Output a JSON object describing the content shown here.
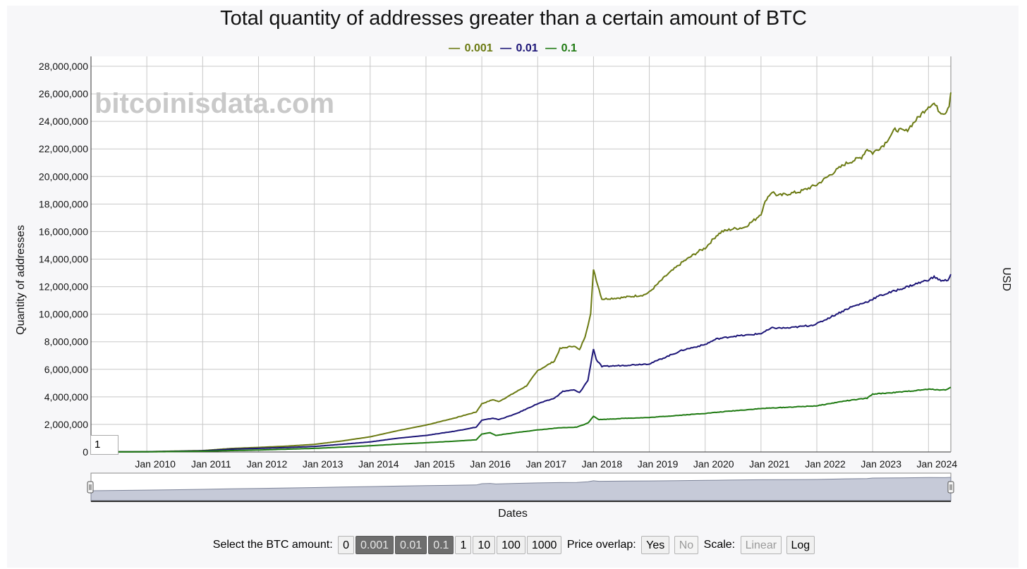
{
  "chart_data": {
    "type": "line",
    "title": "Total quantity of addresses greater than a certain amount of BTC",
    "watermark": "bitcoinisdata.com",
    "xlabel": "Dates",
    "ylabel": "Quantity of addresses",
    "y2label": "USD",
    "xlim": [
      2009.0,
      2024.4
    ],
    "ylim": [
      0,
      28000000
    ],
    "x_ticks": [
      "Jan 2010",
      "Jan 2011",
      "Jan 2012",
      "Jan 2013",
      "Jan 2014",
      "Jan 2015",
      "Jan 2016",
      "Jan 2017",
      "Jan 2018",
      "Jan 2019",
      "Jan 2020",
      "Jan 2021",
      "Jan 2022",
      "Jan 2023",
      "Jan 2024"
    ],
    "y_ticks": [
      "0",
      "2,000,000",
      "4,000,000",
      "6,000,000",
      "8,000,000",
      "10,000,000",
      "12,000,000",
      "14,000,000",
      "16,000,000",
      "18,000,000",
      "20,000,000",
      "22,000,000",
      "24,000,000",
      "26,000,000",
      "28,000,000"
    ],
    "grid": true,
    "legend_position": "top-center",
    "series": [
      {
        "name": "0.001",
        "color": "#6b7a12",
        "points": [
          [
            2009.0,
            0
          ],
          [
            2010.0,
            20000
          ],
          [
            2011.0,
            100000
          ],
          [
            2011.5,
            250000
          ],
          [
            2012.0,
            330000
          ],
          [
            2012.5,
            420000
          ],
          [
            2013.0,
            550000
          ],
          [
            2013.5,
            800000
          ],
          [
            2014.0,
            1100000
          ],
          [
            2014.5,
            1550000
          ],
          [
            2015.0,
            1950000
          ],
          [
            2015.5,
            2450000
          ],
          [
            2015.9,
            2900000
          ],
          [
            2016.0,
            3500000
          ],
          [
            2016.2,
            3800000
          ],
          [
            2016.3,
            3650000
          ],
          [
            2016.5,
            4100000
          ],
          [
            2016.8,
            4800000
          ],
          [
            2017.0,
            5900000
          ],
          [
            2017.3,
            6600000
          ],
          [
            2017.4,
            7500000
          ],
          [
            2017.65,
            7700000
          ],
          [
            2017.75,
            7400000
          ],
          [
            2017.85,
            8400000
          ],
          [
            2017.95,
            10000000
          ],
          [
            2018.0,
            13300000
          ],
          [
            2018.05,
            12500000
          ],
          [
            2018.15,
            11100000
          ],
          [
            2018.5,
            11200000
          ],
          [
            2018.9,
            11400000
          ],
          [
            2019.0,
            11600000
          ],
          [
            2019.3,
            12800000
          ],
          [
            2019.6,
            13800000
          ],
          [
            2019.9,
            14600000
          ],
          [
            2020.0,
            14800000
          ],
          [
            2020.2,
            15700000
          ],
          [
            2020.3,
            16000000
          ],
          [
            2020.5,
            16200000
          ],
          [
            2020.7,
            16300000
          ],
          [
            2020.9,
            16900000
          ],
          [
            2021.0,
            17300000
          ],
          [
            2021.1,
            18400000
          ],
          [
            2021.2,
            18900000
          ],
          [
            2021.3,
            18600000
          ],
          [
            2021.7,
            18900000
          ],
          [
            2022.0,
            19400000
          ],
          [
            2022.3,
            20300000
          ],
          [
            2022.5,
            20900000
          ],
          [
            2022.8,
            21400000
          ],
          [
            2022.9,
            22000000
          ],
          [
            2023.0,
            21700000
          ],
          [
            2023.2,
            22300000
          ],
          [
            2023.4,
            23400000
          ],
          [
            2023.6,
            23300000
          ],
          [
            2023.8,
            24200000
          ],
          [
            2024.0,
            25100000
          ],
          [
            2024.1,
            25300000
          ],
          [
            2024.2,
            24700000
          ],
          [
            2024.3,
            24600000
          ],
          [
            2024.37,
            25200000
          ],
          [
            2024.4,
            26100000
          ]
        ]
      },
      {
        "name": "0.01",
        "color": "#1c1577",
        "points": [
          [
            2009.0,
            0
          ],
          [
            2010.0,
            15000
          ],
          [
            2011.0,
            80000
          ],
          [
            2011.5,
            200000
          ],
          [
            2012.0,
            260000
          ],
          [
            2012.5,
            320000
          ],
          [
            2013.0,
            400000
          ],
          [
            2013.5,
            560000
          ],
          [
            2014.0,
            730000
          ],
          [
            2014.5,
            1000000
          ],
          [
            2015.0,
            1200000
          ],
          [
            2015.5,
            1500000
          ],
          [
            2015.9,
            1800000
          ],
          [
            2016.0,
            2300000
          ],
          [
            2016.2,
            2450000
          ],
          [
            2016.3,
            2350000
          ],
          [
            2016.6,
            2750000
          ],
          [
            2017.0,
            3500000
          ],
          [
            2017.3,
            3900000
          ],
          [
            2017.45,
            4400000
          ],
          [
            2017.65,
            4500000
          ],
          [
            2017.75,
            4300000
          ],
          [
            2017.9,
            5200000
          ],
          [
            2018.0,
            7500000
          ],
          [
            2018.05,
            6700000
          ],
          [
            2018.15,
            6200000
          ],
          [
            2018.6,
            6300000
          ],
          [
            2019.0,
            6400000
          ],
          [
            2019.3,
            6900000
          ],
          [
            2019.6,
            7400000
          ],
          [
            2019.9,
            7700000
          ],
          [
            2020.0,
            7800000
          ],
          [
            2020.2,
            8200000
          ],
          [
            2020.5,
            8400000
          ],
          [
            2020.8,
            8500000
          ],
          [
            2021.0,
            8600000
          ],
          [
            2021.2,
            9000000
          ],
          [
            2021.5,
            9000000
          ],
          [
            2021.9,
            9200000
          ],
          [
            2022.0,
            9300000
          ],
          [
            2022.3,
            9900000
          ],
          [
            2022.6,
            10500000
          ],
          [
            2022.9,
            10900000
          ],
          [
            2023.1,
            11300000
          ],
          [
            2023.4,
            11700000
          ],
          [
            2023.7,
            12100000
          ],
          [
            2024.0,
            12500000
          ],
          [
            2024.1,
            12700000
          ],
          [
            2024.25,
            12400000
          ],
          [
            2024.35,
            12500000
          ],
          [
            2024.4,
            12900000
          ]
        ]
      },
      {
        "name": "0.1",
        "color": "#1f7a12",
        "points": [
          [
            2009.0,
            0
          ],
          [
            2010.0,
            10000
          ],
          [
            2011.0,
            50000
          ],
          [
            2011.5,
            100000
          ],
          [
            2012.0,
            140000
          ],
          [
            2012.5,
            200000
          ],
          [
            2013.0,
            260000
          ],
          [
            2013.5,
            350000
          ],
          [
            2014.0,
            450000
          ],
          [
            2014.5,
            570000
          ],
          [
            2015.0,
            670000
          ],
          [
            2015.5,
            780000
          ],
          [
            2015.9,
            880000
          ],
          [
            2016.0,
            1300000
          ],
          [
            2016.15,
            1400000
          ],
          [
            2016.25,
            1200000
          ],
          [
            2016.6,
            1400000
          ],
          [
            2017.0,
            1600000
          ],
          [
            2017.4,
            1750000
          ],
          [
            2017.7,
            1800000
          ],
          [
            2017.9,
            2100000
          ],
          [
            2018.0,
            2600000
          ],
          [
            2018.1,
            2350000
          ],
          [
            2018.6,
            2450000
          ],
          [
            2019.0,
            2500000
          ],
          [
            2019.5,
            2650000
          ],
          [
            2020.0,
            2800000
          ],
          [
            2020.4,
            2950000
          ],
          [
            2021.0,
            3150000
          ],
          [
            2021.5,
            3250000
          ],
          [
            2022.0,
            3350000
          ],
          [
            2022.5,
            3700000
          ],
          [
            2022.9,
            3900000
          ],
          [
            2023.0,
            4200000
          ],
          [
            2023.5,
            4350000
          ],
          [
            2024.0,
            4550000
          ],
          [
            2024.3,
            4500000
          ],
          [
            2024.4,
            4700000
          ]
        ]
      }
    ]
  },
  "range_input": "1",
  "controls": {
    "btc_label": "Select the BTC amount:",
    "amounts": [
      {
        "label": "0",
        "selected": false
      },
      {
        "label": "0.001",
        "selected": true
      },
      {
        "label": "0.01",
        "selected": true
      },
      {
        "label": "0.1",
        "selected": true
      },
      {
        "label": "1",
        "selected": false
      },
      {
        "label": "10",
        "selected": false
      },
      {
        "label": "100",
        "selected": false
      },
      {
        "label": "1000",
        "selected": false
      }
    ],
    "overlap_label": "Price overlap:",
    "overlap_yes": "Yes",
    "overlap_no": "No",
    "scale_label": "Scale:",
    "scale_linear": "Linear",
    "scale_log": "Log"
  }
}
